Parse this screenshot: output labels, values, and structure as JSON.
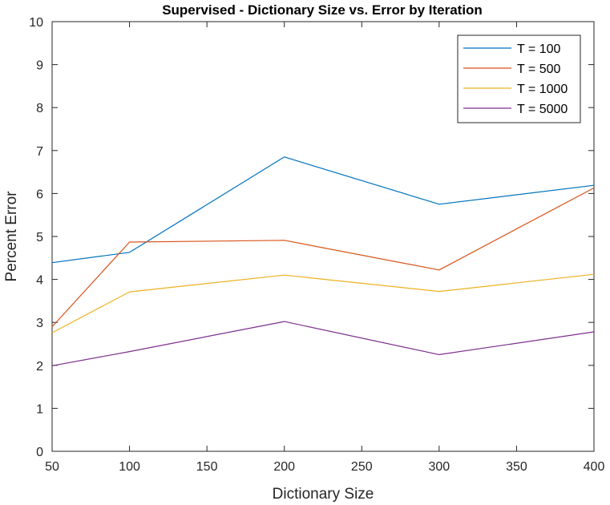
{
  "chart_data": {
    "type": "line",
    "title": "Supervised - Dictionary Size vs. Error by Iteration",
    "xlabel": "Dictionary Size",
    "ylabel": "Percent Error",
    "x": [
      50,
      100,
      200,
      300,
      400
    ],
    "xlim": [
      50,
      400
    ],
    "ylim": [
      0,
      10
    ],
    "xticks": [
      50,
      100,
      150,
      200,
      250,
      300,
      350,
      400
    ],
    "yticks": [
      0,
      1,
      2,
      3,
      4,
      5,
      6,
      7,
      8,
      9,
      10
    ],
    "grid": false,
    "legend_position": "top-right",
    "series": [
      {
        "name": "T = 100",
        "color": "#0072BD",
        "values": [
          4.39,
          4.63,
          6.85,
          5.75,
          6.19
        ]
      },
      {
        "name": "T = 500",
        "color": "#D95319",
        "values": [
          2.9,
          4.87,
          4.91,
          4.22,
          6.13
        ]
      },
      {
        "name": "T = 1000",
        "color": "#EDB120",
        "values": [
          2.76,
          3.71,
          4.1,
          3.72,
          4.12
        ]
      },
      {
        "name": "T = 5000",
        "color": "#7E2F8E",
        "values": [
          1.99,
          2.32,
          3.02,
          2.25,
          2.78
        ]
      }
    ]
  }
}
